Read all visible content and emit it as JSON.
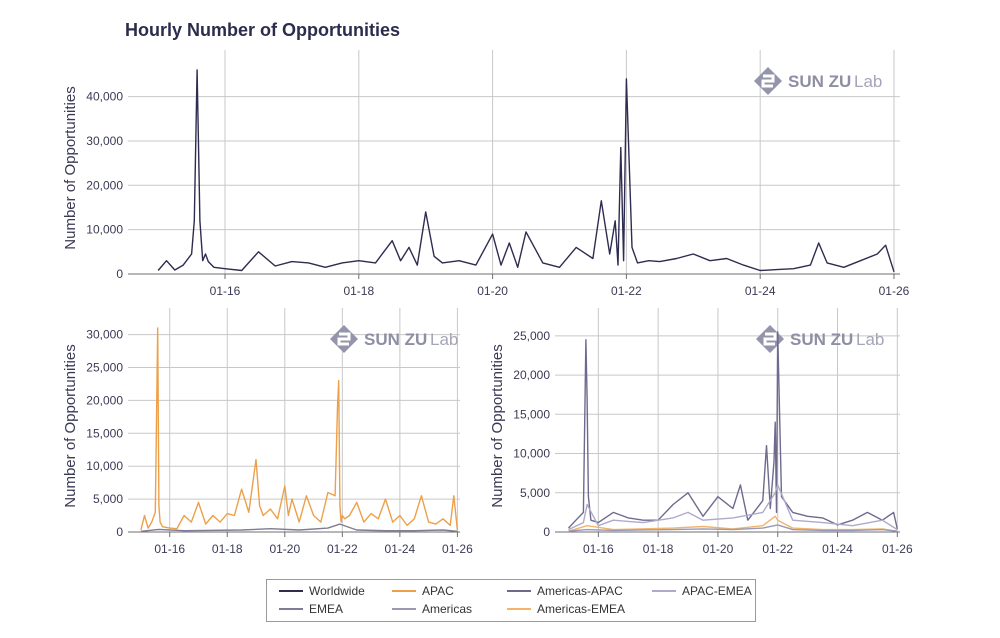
{
  "title": "Hourly Number of Opportunities",
  "logo": {
    "main": "SUN ZU",
    "sub": "Lab"
  },
  "colors": {
    "Worldwide": "#2e2c4f",
    "APAC": "#eda04a",
    "Americas-APAC": "#6e6a8e",
    "APAC-EMEA": "#aeaacb",
    "EMEA": "#7d7d94",
    "Americas": "#9999b4",
    "Americas-EMEA": "#f3b36a",
    "grid": "#c8c8c8",
    "axis": "#6f6f6f"
  },
  "legend": [
    "Worldwide",
    "APAC",
    "Americas-APAC",
    "APAC-EMEA",
    "EMEA",
    "Americas",
    "Americas-EMEA"
  ],
  "chart_data": [
    {
      "type": "line",
      "ylabel": "Number of Opportunities",
      "xlim": [
        "01-15",
        "01-26"
      ],
      "ylim": [
        0,
        46000
      ],
      "yticks": [
        0,
        10000,
        20000,
        30000,
        40000
      ],
      "xticks": [
        "01-16",
        "01-18",
        "01-20",
        "01-22",
        "01-24",
        "01-26"
      ],
      "grid": true,
      "series": [
        {
          "name": "Worldwide",
          "x": [
            "01-15 00:00",
            "01-15 03:00",
            "01-15 06:00",
            "01-15 09:00",
            "01-15 12:00",
            "01-15 13:00",
            "01-15 14:00",
            "01-15 15:00",
            "01-15 16:00",
            "01-15 17:00",
            "01-15 18:00",
            "01-15 20:00",
            "01-16 00:00",
            "01-16 06:00",
            "01-16 12:00",
            "01-16 18:00",
            "01-17 00:00",
            "01-17 06:00",
            "01-17 12:00",
            "01-17 18:00",
            "01-18 00:00",
            "01-18 06:00",
            "01-18 12:00",
            "01-18 15:00",
            "01-18 18:00",
            "01-18 21:00",
            "01-19 00:00",
            "01-19 03:00",
            "01-19 06:00",
            "01-19 12:00",
            "01-19 18:00",
            "01-20 00:00",
            "01-20 03:00",
            "01-20 06:00",
            "01-20 09:00",
            "01-20 12:00",
            "01-20 18:00",
            "01-21 00:00",
            "01-21 06:00",
            "01-21 12:00",
            "01-21 15:00",
            "01-21 18:00",
            "01-21 20:00",
            "01-21 21:00",
            "01-21 22:00",
            "01-21 23:00",
            "01-22 00:00",
            "01-22 01:00",
            "01-22 02:00",
            "01-22 04:00",
            "01-22 08:00",
            "01-22 12:00",
            "01-22 18:00",
            "01-23 00:00",
            "01-23 06:00",
            "01-23 12:00",
            "01-23 18:00",
            "01-24 00:00",
            "01-24 06:00",
            "01-24 12:00",
            "01-24 18:00",
            "01-24 21:00",
            "01-25 00:00",
            "01-25 06:00",
            "01-25 12:00",
            "01-25 18:00",
            "01-25 21:00",
            "01-26 00:00"
          ],
          "y": [
            800,
            3000,
            900,
            2000,
            4500,
            12000,
            46000,
            12000,
            3000,
            4500,
            2800,
            1500,
            1200,
            800,
            5000,
            1800,
            2800,
            2500,
            1500,
            2500,
            3000,
            2500,
            7500,
            3000,
            6000,
            2000,
            14000,
            4000,
            2500,
            3000,
            2000,
            9000,
            2000,
            7000,
            1500,
            9500,
            2500,
            1500,
            6000,
            3500,
            16500,
            4500,
            12000,
            2000,
            28500,
            3000,
            44000,
            25000,
            6000,
            2500,
            3000,
            2800,
            3500,
            4500,
            3000,
            3500,
            2000,
            800,
            1000,
            1200,
            2000,
            7000,
            2500,
            1500,
            3000,
            4500,
            6500,
            500
          ]
        }
      ]
    },
    {
      "type": "line",
      "ylabel": "Number of Opportunities",
      "xlim": [
        "01-15",
        "01-26"
      ],
      "ylim": [
        0,
        31000
      ],
      "yticks": [
        0,
        5000,
        10000,
        15000,
        20000,
        25000,
        30000
      ],
      "xticks": [
        "01-16",
        "01-18",
        "01-20",
        "01-22",
        "01-24",
        "01-26"
      ],
      "grid": true,
      "series": [
        {
          "name": "APAC",
          "x": [
            "01-15 00:00",
            "01-15 03:00",
            "01-15 06:00",
            "01-15 09:00",
            "01-15 12:00",
            "01-15 14:00",
            "01-15 15:00",
            "01-15 16:00",
            "01-15 18:00",
            "01-16 00:00",
            "01-16 06:00",
            "01-16 12:00",
            "01-16 18:00",
            "01-17 00:00",
            "01-17 06:00",
            "01-17 12:00",
            "01-17 18:00",
            "01-18 00:00",
            "01-18 06:00",
            "01-18 12:00",
            "01-18 18:00",
            "01-19 00:00",
            "01-19 03:00",
            "01-19 06:00",
            "01-19 12:00",
            "01-19 18:00",
            "01-20 00:00",
            "01-20 03:00",
            "01-20 06:00",
            "01-20 12:00",
            "01-20 18:00",
            "01-21 00:00",
            "01-21 06:00",
            "01-21 12:00",
            "01-21 18:00",
            "01-21 20:00",
            "01-21 21:00",
            "01-21 22:00",
            "01-21 23:00",
            "01-22 00:00",
            "01-22 02:00",
            "01-22 06:00",
            "01-22 12:00",
            "01-22 18:00",
            "01-23 00:00",
            "01-23 06:00",
            "01-23 12:00",
            "01-23 18:00",
            "01-24 00:00",
            "01-24 06:00",
            "01-24 12:00",
            "01-24 18:00",
            "01-25 00:00",
            "01-25 06:00",
            "01-25 12:00",
            "01-25 18:00",
            "01-25 21:00",
            "01-26 00:00"
          ],
          "y": [
            300,
            2500,
            600,
            1500,
            3000,
            31000,
            4000,
            1500,
            800,
            600,
            500,
            2500,
            1500,
            4500,
            1200,
            2500,
            1500,
            2800,
            2500,
            6500,
            3000,
            11000,
            4000,
            2500,
            3500,
            2000,
            7000,
            2500,
            5000,
            1500,
            5500,
            2500,
            1500,
            6000,
            5500,
            19000,
            23000,
            4000,
            1500,
            2500,
            2000,
            2500,
            4500,
            1500,
            2800,
            2000,
            5000,
            1500,
            2500,
            1000,
            2000,
            5500,
            1500,
            1200,
            2000,
            1000,
            5500,
            300
          ]
        },
        {
          "name": "EMEA",
          "x": [
            "01-15 00:00",
            "01-15 15:00",
            "01-16 12:00",
            "01-18 12:00",
            "01-19 12:00",
            "01-20 12:00",
            "01-21 12:00",
            "01-21 22:00",
            "01-22 12:00",
            "01-23 12:00",
            "01-24 12:00",
            "01-25 12:00",
            "01-26 00:00"
          ],
          "y": [
            100,
            400,
            200,
            300,
            500,
            300,
            600,
            1200,
            300,
            200,
            200,
            300,
            100
          ]
        }
      ]
    },
    {
      "type": "line",
      "ylabel": "Number of Opportunities",
      "xlim": [
        "01-15",
        "01-26"
      ],
      "ylim": [
        0,
        26000
      ],
      "yticks": [
        0,
        5000,
        10000,
        15000,
        20000,
        25000
      ],
      "xticks": [
        "01-16",
        "01-18",
        "01-20",
        "01-22",
        "01-24",
        "01-26"
      ],
      "grid": true,
      "series": [
        {
          "name": "Americas-APAC",
          "x": [
            "01-15 00:00",
            "01-15 06:00",
            "01-15 12:00",
            "01-15 14:00",
            "01-15 15:00",
            "01-15 16:00",
            "01-15 18:00",
            "01-16 00:00",
            "01-16 12:00",
            "01-17 00:00",
            "01-17 12:00",
            "01-18 00:00",
            "01-18 12:00",
            "01-19 00:00",
            "01-19 12:00",
            "01-20 00:00",
            "01-20 12:00",
            "01-20 18:00",
            "01-21 00:00",
            "01-21 12:00",
            "01-21 15:00",
            "01-21 18:00",
            "01-21 21:00",
            "01-21 22:00",
            "01-21 23:00",
            "01-22 00:00",
            "01-22 03:00",
            "01-22 12:00",
            "01-23 00:00",
            "01-23 12:00",
            "01-24 00:00",
            "01-24 12:00",
            "01-25 00:00",
            "01-25 12:00",
            "01-25 21:00",
            "01-26 00:00"
          ],
          "y": [
            500,
            1500,
            2500,
            24500,
            17000,
            4500,
            1500,
            1200,
            2500,
            1800,
            1500,
            1500,
            3500,
            5000,
            2000,
            4500,
            3000,
            6000,
            1500,
            4000,
            11000,
            3000,
            9000,
            14000,
            2500,
            25500,
            4500,
            2500,
            2000,
            1800,
            900,
            1500,
            2500,
            1500,
            2500,
            400
          ]
        },
        {
          "name": "APAC-EMEA",
          "x": [
            "01-15 00:00",
            "01-15 12:00",
            "01-15 15:00",
            "01-16 00:00",
            "01-16 12:00",
            "01-17 12:00",
            "01-18 12:00",
            "01-19 00:00",
            "01-19 12:00",
            "01-20 12:00",
            "01-21 12:00",
            "01-21 22:00",
            "01-22 00:00",
            "01-22 12:00",
            "01-23 12:00",
            "01-24 12:00",
            "01-25 12:00",
            "01-26 00:00"
          ],
          "y": [
            300,
            1200,
            3500,
            800,
            1500,
            1200,
            1800,
            2500,
            1500,
            1800,
            2500,
            5000,
            6000,
            1500,
            1200,
            800,
            1500,
            300
          ]
        },
        {
          "name": "Americas-EMEA",
          "x": [
            "01-15 00:00",
            "01-15 15:00",
            "01-16 12:00",
            "01-18 12:00",
            "01-19 12:00",
            "01-20 12:00",
            "01-21 12:00",
            "01-21 22:00",
            "01-22 00:00",
            "01-22 12:00",
            "01-23 12:00",
            "01-24 12:00",
            "01-25 12:00",
            "01-26 00:00"
          ],
          "y": [
            100,
            800,
            300,
            500,
            700,
            400,
            800,
            2000,
            1500,
            500,
            300,
            300,
            400,
            100
          ]
        },
        {
          "name": "Americas",
          "x": [
            "01-15 00:00",
            "01-15 15:00",
            "01-16 12:00",
            "01-18 12:00",
            "01-19 12:00",
            "01-20 12:00",
            "01-21 12:00",
            "01-22 00:00",
            "01-22 12:00",
            "01-23 12:00",
            "01-24 12:00",
            "01-25 12:00",
            "01-26 00:00"
          ],
          "y": [
            100,
            300,
            200,
            300,
            400,
            300,
            500,
            900,
            300,
            200,
            200,
            300,
            100
          ]
        }
      ]
    }
  ]
}
